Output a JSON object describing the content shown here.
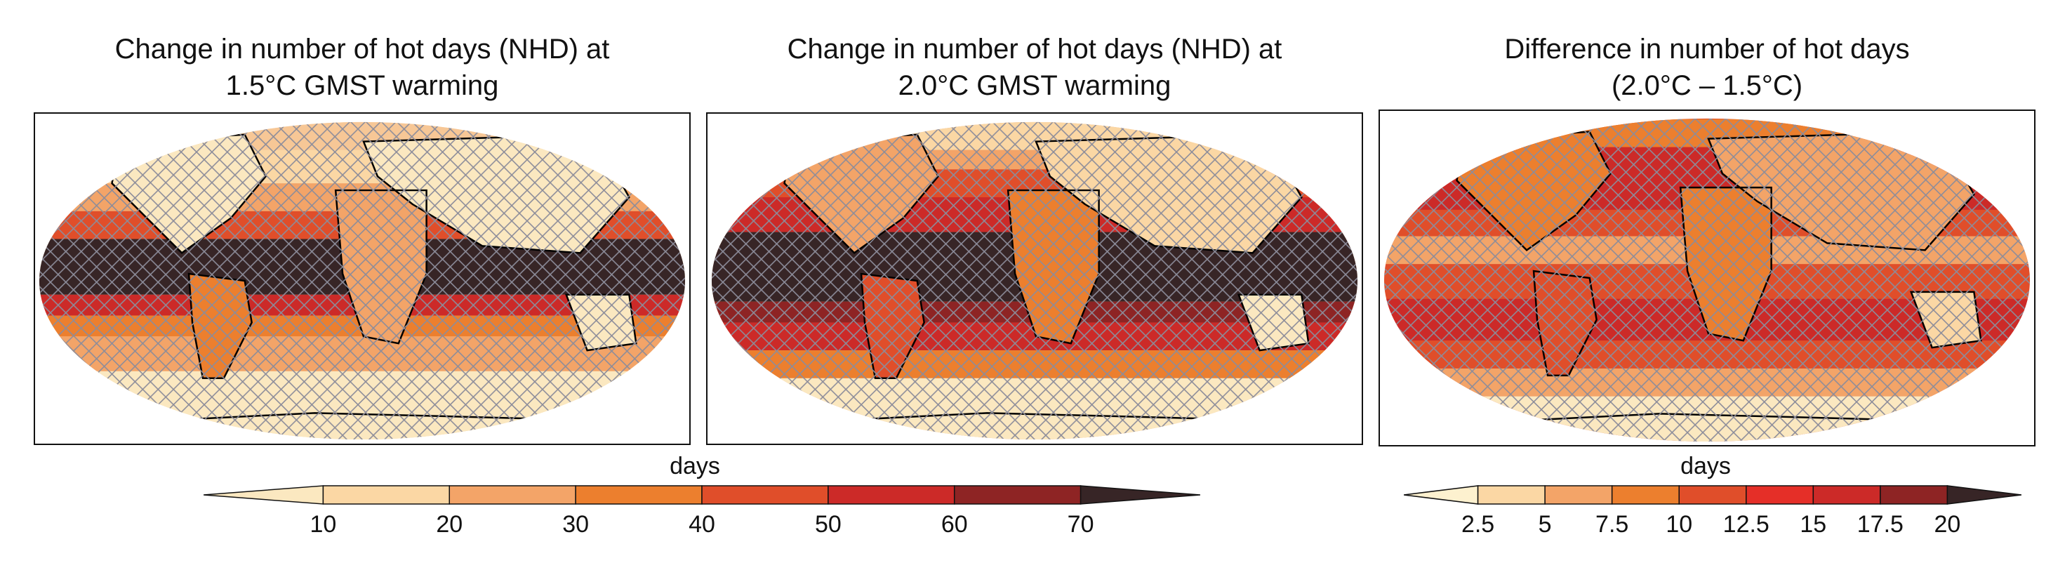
{
  "panels": [
    {
      "title_line1": "Change in number of hot days (NHD) at",
      "title_line2": "1.5°C GMST warming"
    },
    {
      "title_line1": "Change in number of hot days (NHD) at",
      "title_line2": "2.0°C GMST warming"
    },
    {
      "title_line1": "Difference in number of hot days",
      "title_line2": "(2.0°C – 1.5°C)"
    }
  ],
  "colorbar_main": {
    "label": "days",
    "ticks": [
      "10",
      "20",
      "30",
      "40",
      "50",
      "60",
      "70"
    ],
    "colors": [
      "#fbe8c0",
      "#fbd7a4",
      "#f3a468",
      "#ec7f2e",
      "#e04e2a",
      "#cc2a28",
      "#8e2424",
      "#372526"
    ]
  },
  "colorbar_diff": {
    "label": "days",
    "ticks": [
      "2.5",
      "5",
      "7.5",
      "10",
      "12.5",
      "15",
      "17.5",
      "20"
    ],
    "colors": [
      "#fdf1cf",
      "#fbd7a4",
      "#f3a468",
      "#ec7f2e",
      "#e04e2a",
      "#e52f28",
      "#cc2a28",
      "#8e2424",
      "#372526"
    ]
  },
  "hatch_color": "#8c8c9a",
  "land_outline_color": "#000000"
}
